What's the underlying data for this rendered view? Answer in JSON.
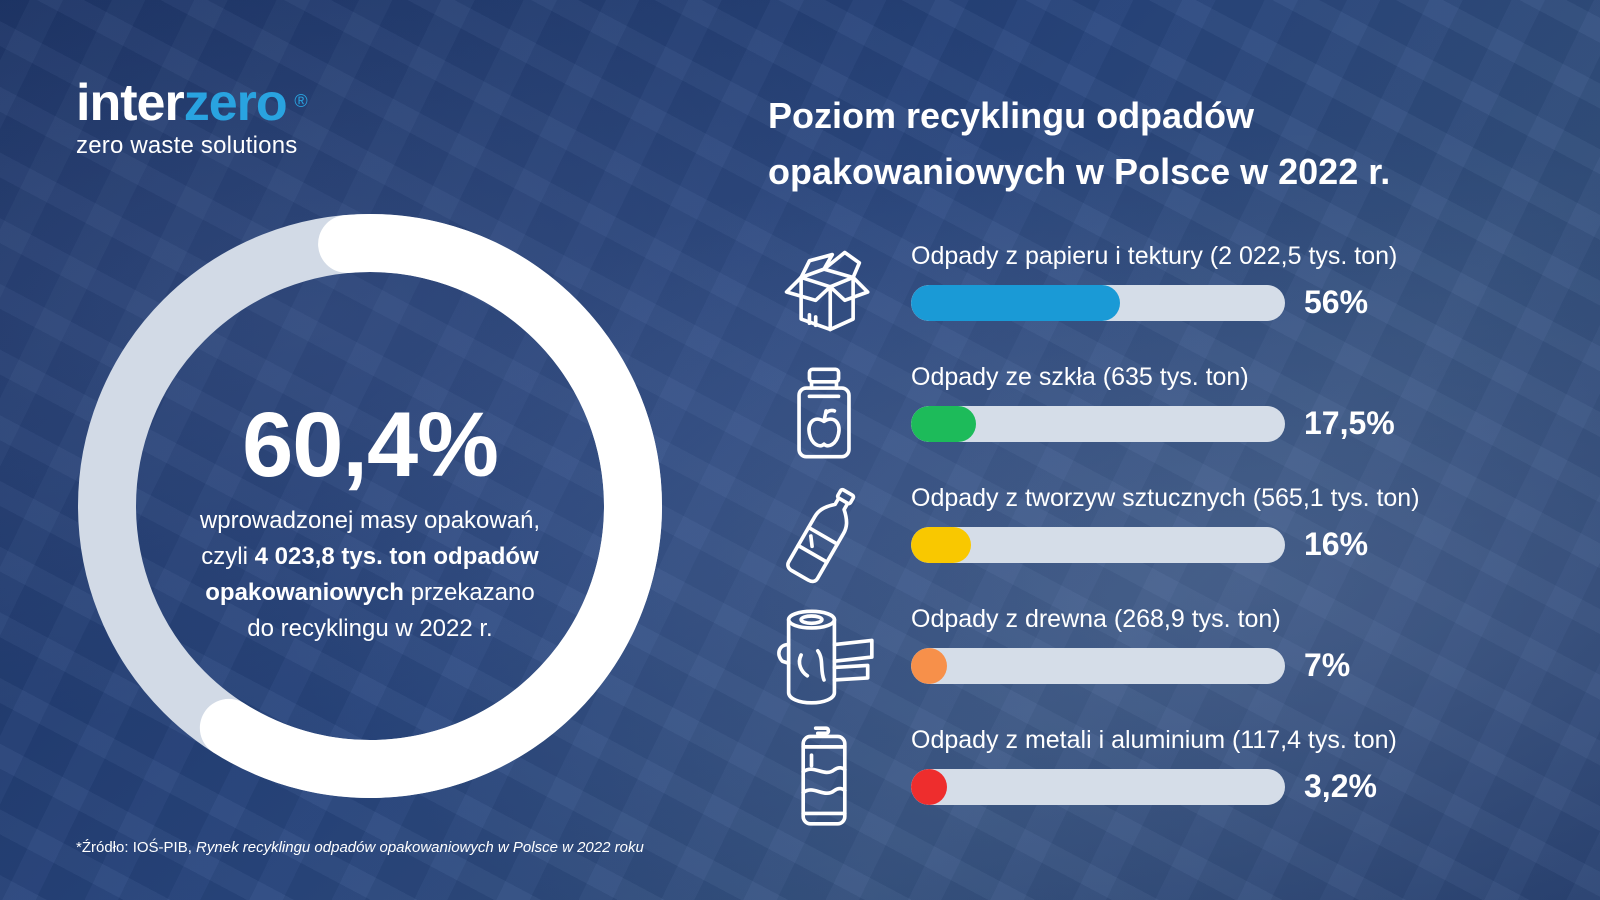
{
  "logo": {
    "brand_part1": "inter",
    "brand_part2": "zero",
    "registered_mark": "®",
    "tagline": "zero waste solutions",
    "brand_color": "#29a3e0"
  },
  "summary": {
    "percent_text": "60,4%",
    "ring_value_pct": 60.4,
    "line1": "wprowadzonej masy opakowań,",
    "line2_pre": "czyli ",
    "line2_bold": "4 023,8 tys. ton odpadów",
    "line3_bold": "opakowaniowych",
    "line3_rest": " przekazano",
    "line4": "do recyklingu w 2022 r."
  },
  "chart_data": {
    "type": "bar",
    "orientation": "horizontal",
    "title": "Poziom recyklingu odpadów opakowaniowych w Polsce w 2022 r.",
    "title_line1": "Poziom recyklingu odpadów",
    "title_line2": "opakowaniowych w Polsce w 2022 r.",
    "xlim": [
      0,
      100
    ],
    "grid": false,
    "categories": [
      "Odpady z papieru i tektury (2 022,5 tys. ton)",
      "Odpady ze szkła (635 tys. ton)",
      "Odpady z tworzyw sztucznych (565,1 tys. ton)",
      "Odpady z drewna (268,9 tys. ton)",
      "Odpady z metali i aluminium (117,4 tys. ton)"
    ],
    "values": [
      56,
      17.5,
      16,
      7,
      3.2
    ],
    "value_labels": [
      "56%",
      "17,5%",
      "16%",
      "7%",
      "3,2%"
    ],
    "colors": [
      "#1a9ad6",
      "#1dbb5a",
      "#f9c800",
      "#f7904a",
      "#ee2d2d"
    ],
    "icons": [
      "cardboard-box-icon",
      "glass-jar-icon",
      "plastic-bottle-icon",
      "wood-log-icon",
      "metal-can-icon"
    ]
  },
  "footer": {
    "source_prefix": "*Źródło: IOŚ-PIB, ",
    "source_title": "Rynek recyklingu odpadów opakowaniowych w Polsce w 2022 roku"
  }
}
